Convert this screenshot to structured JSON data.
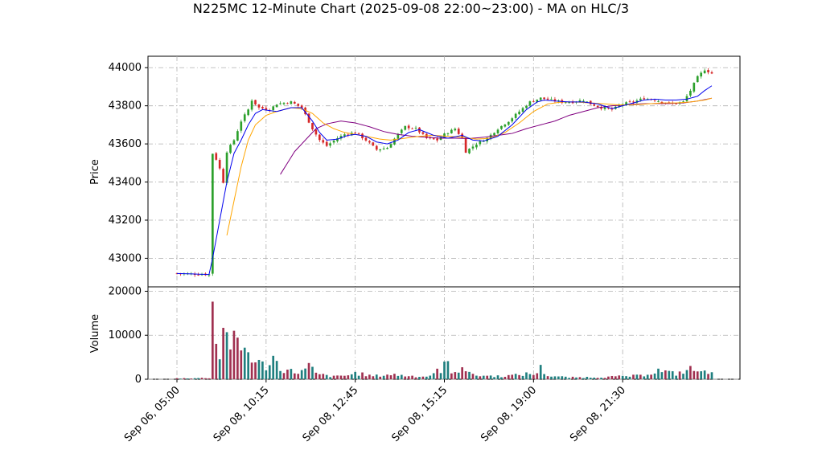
{
  "chart_data": {
    "type": "candlestick",
    "title": "N225MC 12-Minute Chart (2025-09-08 22:00~23:00) - MA on HLC/3",
    "price_panel": {
      "ylabel": "Price",
      "ylim": [
        42850,
        44060
      ],
      "yticks": [
        43000,
        43200,
        43400,
        43600,
        43800,
        44000
      ],
      "grid": true
    },
    "volume_panel": {
      "ylabel": "Volume",
      "ylim": [
        0,
        21000
      ],
      "yticks": [
        0,
        10000,
        20000
      ],
      "grid": true
    },
    "x_tick_labels": [
      "Sep 06, 05:00",
      "Sep 08, 10:15",
      "Sep 08, 12:45",
      "Sep 08, 15:15",
      "Sep 08, 19:00",
      "Sep 08, 21:30"
    ],
    "x_tick_index": [
      0,
      25,
      50,
      75,
      100,
      125
    ],
    "bar_count": 151,
    "colors": {
      "up": "#2ca02c",
      "down": "#d62728",
      "ma_short": "#0000ee",
      "ma_mid": "#ffa500",
      "ma_long": "#800080",
      "volume_up": "#1f7f7f",
      "volume_down": "#a03050"
    },
    "close_path": [
      [
        0,
        42920
      ],
      [
        9,
        42915
      ],
      [
        10,
        43550
      ],
      [
        11,
        43520
      ],
      [
        12,
        43470
      ],
      [
        13,
        43400
      ],
      [
        14,
        43560
      ],
      [
        16,
        43620
      ],
      [
        18,
        43720
      ],
      [
        20,
        43780
      ],
      [
        21,
        43830
      ],
      [
        23,
        43790
      ],
      [
        26,
        43780
      ],
      [
        28,
        43810
      ],
      [
        32,
        43820
      ],
      [
        35,
        43790
      ],
      [
        38,
        43680
      ],
      [
        40,
        43620
      ],
      [
        42,
        43590
      ],
      [
        45,
        43630
      ],
      [
        47,
        43650
      ],
      [
        50,
        43660
      ],
      [
        53,
        43620
      ],
      [
        56,
        43570
      ],
      [
        59,
        43580
      ],
      [
        62,
        43650
      ],
      [
        64,
        43690
      ],
      [
        67,
        43680
      ],
      [
        70,
        43630
      ],
      [
        73,
        43620
      ],
      [
        75,
        43650
      ],
      [
        78,
        43680
      ],
      [
        80,
        43630
      ],
      [
        81,
        43560
      ],
      [
        84,
        43600
      ],
      [
        87,
        43630
      ],
      [
        90,
        43680
      ],
      [
        93,
        43720
      ],
      [
        96,
        43770
      ],
      [
        99,
        43820
      ],
      [
        102,
        43840
      ],
      [
        105,
        43830
      ],
      [
        108,
        43820
      ],
      [
        111,
        43820
      ],
      [
        114,
        43830
      ],
      [
        116,
        43810
      ],
      [
        119,
        43790
      ],
      [
        122,
        43780
      ],
      [
        125,
        43810
      ],
      [
        128,
        43820
      ],
      [
        131,
        43840
      ],
      [
        134,
        43830
      ],
      [
        136,
        43820
      ],
      [
        139,
        43810
      ],
      [
        142,
        43820
      ],
      [
        144,
        43880
      ],
      [
        146,
        43950
      ],
      [
        148,
        43990
      ],
      [
        150,
        43970
      ]
    ],
    "volume_path": [
      [
        0,
        200
      ],
      [
        9,
        300
      ],
      [
        10,
        19200
      ],
      [
        11,
        7500
      ],
      [
        12,
        5800
      ],
      [
        13,
        13200
      ],
      [
        14,
        9500
      ],
      [
        16,
        8000
      ],
      [
        18,
        7000
      ],
      [
        20,
        6500
      ],
      [
        22,
        3800
      ],
      [
        25,
        3000
      ],
      [
        27,
        4800
      ],
      [
        29,
        2500
      ],
      [
        33,
        1600
      ],
      [
        36,
        2000
      ],
      [
        37,
        3200
      ],
      [
        39,
        1200
      ],
      [
        44,
        600
      ],
      [
        48,
        900
      ],
      [
        50,
        1400
      ],
      [
        55,
        700
      ],
      [
        60,
        1100
      ],
      [
        64,
        800
      ],
      [
        70,
        600
      ],
      [
        73,
        1800
      ],
      [
        74,
        1200
      ],
      [
        75,
        6200
      ],
      [
        77,
        1000
      ],
      [
        79,
        2200
      ],
      [
        80,
        3500
      ],
      [
        81,
        2400
      ],
      [
        83,
        900
      ],
      [
        90,
        700
      ],
      [
        95,
        900
      ],
      [
        99,
        1300
      ],
      [
        100,
        1000
      ],
      [
        102,
        2500
      ],
      [
        104,
        800
      ],
      [
        110,
        400
      ],
      [
        120,
        500
      ],
      [
        130,
        800
      ],
      [
        135,
        2000
      ],
      [
        140,
        1200
      ],
      [
        144,
        2300
      ],
      [
        148,
        1500
      ],
      [
        150,
        2200
      ]
    ],
    "ma_short_path": [
      [
        0,
        42920
      ],
      [
        9,
        42915
      ],
      [
        10,
        43000
      ],
      [
        12,
        43200
      ],
      [
        14,
        43400
      ],
      [
        16,
        43550
      ],
      [
        18,
        43620
      ],
      [
        20,
        43700
      ],
      [
        22,
        43760
      ],
      [
        24,
        43780
      ],
      [
        28,
        43770
      ],
      [
        32,
        43790
      ],
      [
        35,
        43790
      ],
      [
        38,
        43720
      ],
      [
        40,
        43660
      ],
      [
        42,
        43620
      ],
      [
        45,
        43625
      ],
      [
        48,
        43645
      ],
      [
        50,
        43650
      ],
      [
        53,
        43640
      ],
      [
        56,
        43610
      ],
      [
        59,
        43600
      ],
      [
        62,
        43620
      ],
      [
        65,
        43660
      ],
      [
        68,
        43675
      ],
      [
        72,
        43645
      ],
      [
        76,
        43630
      ],
      [
        80,
        43645
      ],
      [
        83,
        43620
      ],
      [
        86,
        43615
      ],
      [
        90,
        43640
      ],
      [
        94,
        43700
      ],
      [
        98,
        43780
      ],
      [
        101,
        43820
      ],
      [
        103,
        43830
      ],
      [
        106,
        43825
      ],
      [
        110,
        43820
      ],
      [
        114,
        43820
      ],
      [
        118,
        43810
      ],
      [
        122,
        43785
      ],
      [
        125,
        43800
      ],
      [
        128,
        43815
      ],
      [
        131,
        43830
      ],
      [
        134,
        43835
      ],
      [
        137,
        43830
      ],
      [
        140,
        43830
      ],
      [
        143,
        43835
      ],
      [
        146,
        43850
      ],
      [
        148,
        43880
      ],
      [
        150,
        43905
      ]
    ],
    "ma_mid_path": [
      [
        14,
        43120
      ],
      [
        16,
        43300
      ],
      [
        18,
        43480
      ],
      [
        20,
        43620
      ],
      [
        22,
        43700
      ],
      [
        25,
        43750
      ],
      [
        28,
        43770
      ],
      [
        32,
        43790
      ],
      [
        35,
        43785
      ],
      [
        38,
        43760
      ],
      [
        41,
        43710
      ],
      [
        44,
        43680
      ],
      [
        47,
        43660
      ],
      [
        50,
        43650
      ],
      [
        53,
        43640
      ],
      [
        57,
        43625
      ],
      [
        60,
        43620
      ],
      [
        64,
        43630
      ],
      [
        68,
        43640
      ],
      [
        72,
        43645
      ],
      [
        76,
        43640
      ],
      [
        80,
        43635
      ],
      [
        84,
        43625
      ],
      [
        88,
        43630
      ],
      [
        92,
        43660
      ],
      [
        96,
        43710
      ],
      [
        100,
        43770
      ],
      [
        104,
        43810
      ],
      [
        108,
        43820
      ],
      [
        112,
        43820
      ],
      [
        116,
        43815
      ],
      [
        120,
        43810
      ],
      [
        124,
        43805
      ],
      [
        128,
        43805
      ],
      [
        132,
        43810
      ],
      [
        136,
        43815
      ],
      [
        140,
        43815
      ],
      [
        144,
        43820
      ],
      [
        148,
        43830
      ],
      [
        150,
        43840
      ]
    ],
    "ma_long_path": [
      [
        29,
        43440
      ],
      [
        31,
        43500
      ],
      [
        33,
        43560
      ],
      [
        36,
        43620
      ],
      [
        39,
        43680
      ],
      [
        42,
        43705
      ],
      [
        46,
        43720
      ],
      [
        50,
        43710
      ],
      [
        54,
        43690
      ],
      [
        58,
        43665
      ],
      [
        62,
        43650
      ],
      [
        66,
        43640
      ],
      [
        70,
        43635
      ],
      [
        74,
        43630
      ],
      [
        78,
        43630
      ],
      [
        82,
        43628
      ],
      [
        86,
        43635
      ],
      [
        90,
        43645
      ],
      [
        94,
        43655
      ],
      [
        98,
        43680
      ],
      [
        102,
        43700
      ],
      [
        106,
        43720
      ],
      [
        110,
        43750
      ],
      [
        114,
        43770
      ],
      [
        118,
        43790
      ],
      [
        122,
        43800
      ],
      [
        126,
        43805
      ],
      [
        130,
        43810
      ],
      [
        134,
        43812
      ],
      [
        138,
        43812
      ],
      [
        142,
        43815
      ],
      [
        146,
        43825
      ],
      [
        150,
        43840
      ]
    ]
  }
}
